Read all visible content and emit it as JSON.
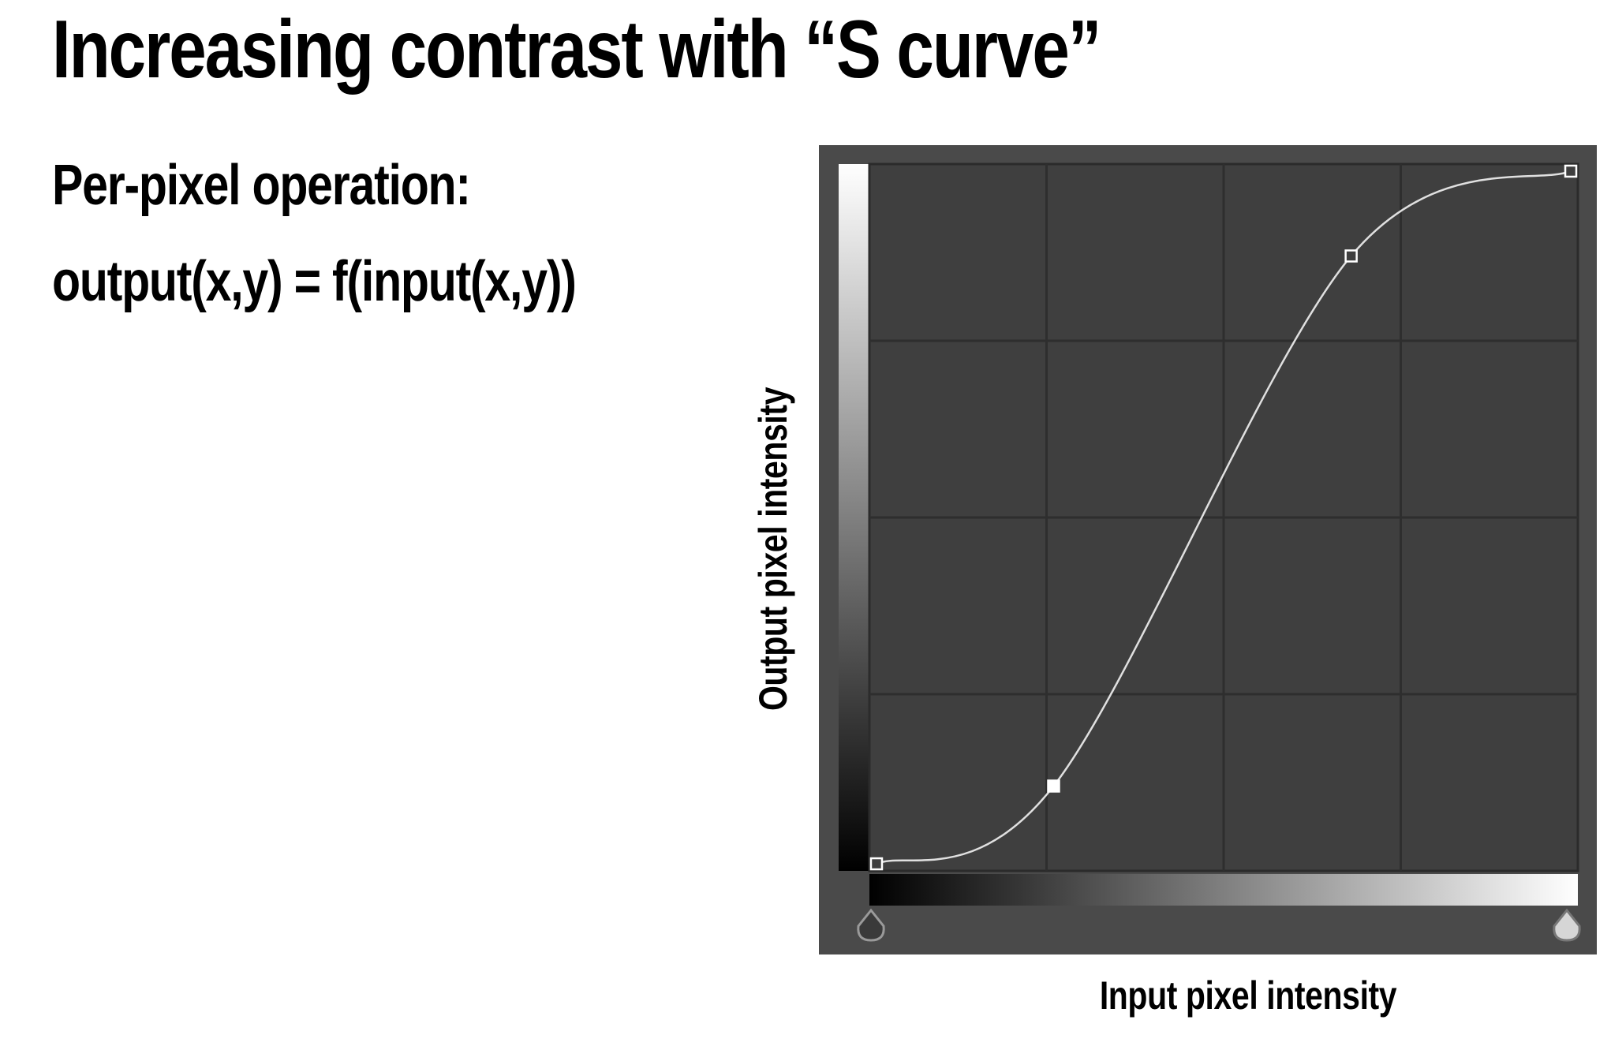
{
  "slide": {
    "title": "Increasing contrast with “S curve”",
    "line1": "Per-pixel operation:",
    "line2": "output(x,y) = f(input(x,y))"
  },
  "curves_panel": {
    "x_axis_label": "Input pixel intensity",
    "y_axis_label": "Output pixel intensity",
    "panel_color": "#4a4a4a",
    "plot_color": "#3f3f3f",
    "grid_color": "#2e2e2e",
    "curve_color": "#e0e0e0",
    "control_points": [
      {
        "input": 0.01,
        "output": 0.01,
        "filled": false
      },
      {
        "input": 0.26,
        "output": 0.12,
        "filled": true
      },
      {
        "input": 0.68,
        "output": 0.87,
        "filled": false
      },
      {
        "input": 0.99,
        "output": 0.99,
        "filled": false
      }
    ],
    "black_point_slider": "triangle-slider-handle",
    "white_point_slider": "triangle-slider-handle"
  }
}
